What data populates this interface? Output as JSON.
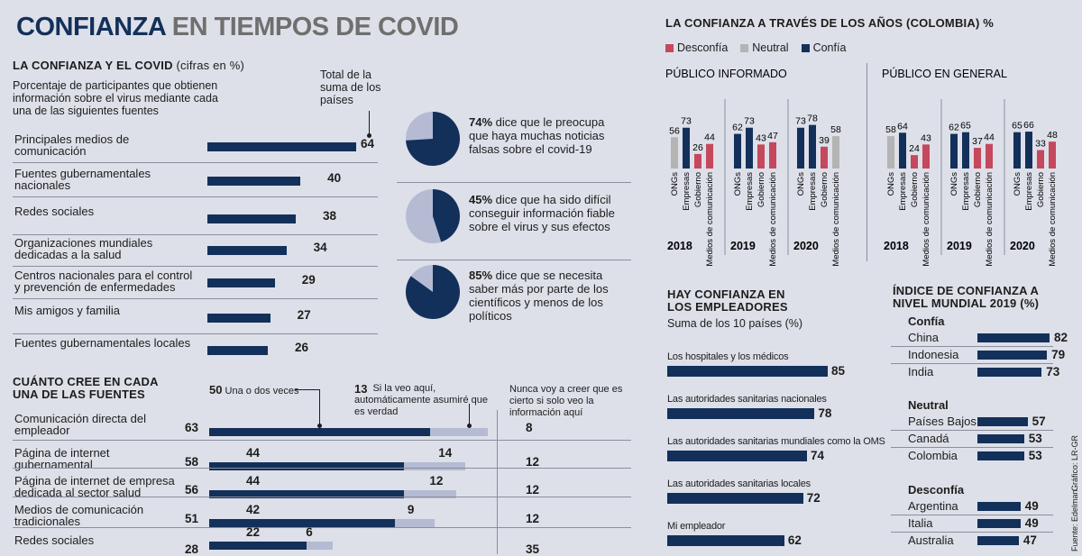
{
  "title": {
    "main": "CONFIANZA",
    "rest": "EN TIEMPOS DE COVID"
  },
  "covid": {
    "heading": "LA CONFIANZA Y EL COVID",
    "heading_note": "(cifras en %)",
    "description": "Porcentaje de participantes que obtienen información sobre el virus mediante cada una de las siguientes fuentes",
    "total_label": "Total de la suma de los países",
    "rows": [
      {
        "label": "Principales medios de comunicación",
        "value": 64
      },
      {
        "label": "Fuentes gubernamentales nacionales",
        "value": 40
      },
      {
        "label": "Redes sociales",
        "value": 38
      },
      {
        "label": "Organizaciones mundiales dedicadas a la salud",
        "value": 34
      },
      {
        "label": "Centros nacionales para el control y prevención de enfermedades",
        "value": 29
      },
      {
        "label": "Mis amigos y familia",
        "value": 27
      },
      {
        "label": "Fuentes gubernamentales locales",
        "value": 26
      }
    ]
  },
  "pies": [
    {
      "pct": "74%",
      "text": "dice que le preocupa que haya muchas noticias falsas sobre el covid-19",
      "value": 74
    },
    {
      "pct": "45%",
      "text": "dice que ha sido difícil conseguir información fiable sobre el virus y sus efectos",
      "value": 45
    },
    {
      "pct": "85%",
      "text": "dice que se necesita saber más por parte de los científicos y menos de los políticos",
      "value": 85
    }
  ],
  "belief": {
    "heading": "CUÁNTO CREE EN CADA UNA DE LAS FUENTES",
    "ann1_num": "50",
    "ann1_text": "Una o dos veces",
    "ann2_num": "13",
    "ann2_text": "Si la veo aquí, automáticamente asumiré que es verdad",
    "ann3_text": "Nunca voy a creer que es cierto si solo veo la información aquí",
    "rows": [
      {
        "label": "Comunicación directa del empleador",
        "total": 63,
        "once": 50,
        "auto": 13,
        "never": 8,
        "show_parts": false
      },
      {
        "label": "Página de internet gubernamental",
        "total": 58,
        "once": 44,
        "auto": 14,
        "never": 12,
        "show_parts": true
      },
      {
        "label": "Página de internet de empresa dedicada al sector salud",
        "total": 56,
        "once": 44,
        "auto": 12,
        "never": 12,
        "show_parts": true
      },
      {
        "label": "Medios de comunicación tradicionales",
        "total": 51,
        "once": 42,
        "auto": 9,
        "never": 12,
        "show_parts": true
      },
      {
        "label": "Redes sociales",
        "total": 28,
        "once": 22,
        "auto": 6,
        "never": 35,
        "show_parts": true
      }
    ]
  },
  "years": {
    "heading": "LA CONFIANZA A TRAVÉS DE LOS AÑOS (COLOMBIA) %",
    "legend": [
      {
        "label": "Desconfía",
        "color": "#c5485c"
      },
      {
        "label": "Neutral",
        "color": "#b4b4b4"
      },
      {
        "label": "Confía",
        "color": "#13305a"
      }
    ],
    "categories": [
      "ONGs",
      "Empresas",
      "Gobierno",
      "Medios de comunicación"
    ],
    "panels": [
      {
        "title": "PÚBLICO INFORMADO",
        "groups": [
          {
            "year": "2018",
            "values": [
              56,
              73,
              26,
              44
            ]
          },
          {
            "year": "2019",
            "values": [
              62,
              73,
              43,
              47
            ]
          },
          {
            "year": "2020",
            "values": [
              73,
              78,
              39,
              58
            ]
          }
        ]
      },
      {
        "title": "PÚBLICO EN GENERAL",
        "groups": [
          {
            "year": "2018",
            "values": [
              58,
              64,
              24,
              43
            ]
          },
          {
            "year": "2019",
            "values": [
              62,
              65,
              37,
              44
            ]
          },
          {
            "year": "2020",
            "values": [
              65,
              66,
              33,
              48
            ]
          }
        ]
      }
    ]
  },
  "employers": {
    "heading": "HAY CONFIANZA EN LOS EMPLEADORES",
    "sub": "Suma de los 10 países (%)",
    "rows": [
      {
        "label": "Los hospitales y los médicos",
        "value": 85
      },
      {
        "label": "Las autoridades sanitarias nacionales",
        "value": 78
      },
      {
        "label": "Las autoridades sanitarias mundiales como la OMS",
        "value": 74
      },
      {
        "label": "Las autoridades sanitarias locales",
        "value": 72
      },
      {
        "label": "Mi empleador",
        "value": 62
      }
    ]
  },
  "index": {
    "heading": "ÍNDICE DE CONFIANZA A NIVEL MUNDIAL 2019 (%)",
    "groups": [
      {
        "name": "Confía",
        "rows": [
          {
            "label": "China",
            "value": 82
          },
          {
            "label": "Indonesia",
            "value": 79
          },
          {
            "label": "India",
            "value": 73
          }
        ]
      },
      {
        "name": "Neutral",
        "rows": [
          {
            "label": "Países Bajos",
            "value": 57
          },
          {
            "label": "Canadá",
            "value": 53
          },
          {
            "label": "Colombia",
            "value": 53
          }
        ]
      },
      {
        "name": "Desconfía",
        "rows": [
          {
            "label": "Argentina",
            "value": 49
          },
          {
            "label": "Italia",
            "value": 49
          },
          {
            "label": "Australia",
            "value": 47
          }
        ]
      }
    ]
  },
  "credits": {
    "graphic": "Gráfico: LR-GR",
    "source": "Fuente: Edelman"
  },
  "colors": {
    "navy": "#13305a",
    "light": "#b4bbd2",
    "red": "#c5485c",
    "gray": "#b4b4b4"
  },
  "chart_data": [
    {
      "type": "bar",
      "title": "LA CONFIANZA Y EL COVID",
      "categories": [
        "Principales medios de comunicación",
        "Fuentes gubernamentales nacionales",
        "Redes sociales",
        "Organizaciones mundiales dedicadas a la salud",
        "Centros nacionales para el control y prevención de enfermedades",
        "Mis amigos y familia",
        "Fuentes gubernamentales locales"
      ],
      "values": [
        64,
        40,
        38,
        34,
        29,
        27,
        26
      ]
    },
    {
      "type": "pie",
      "values": [
        74,
        45,
        85
      ]
    },
    {
      "type": "bar",
      "title": "CUÁNTO CREE EN CADA UNA DE LAS FUENTES",
      "categories": [
        "Comunicación directa del empleador",
        "Página de internet gubernamental",
        "Página de internet de empresa dedicada al sector salud",
        "Medios de comunicación tradicionales",
        "Redes sociales"
      ],
      "series": [
        {
          "name": "Una o dos veces",
          "values": [
            50,
            44,
            44,
            42,
            22
          ]
        },
        {
          "name": "Si la veo aquí, automáticamente asumiré que es verdad",
          "values": [
            13,
            14,
            12,
            9,
            6
          ]
        },
        {
          "name": "Nunca voy a creer que es cierto si solo veo la información aquí",
          "values": [
            8,
            12,
            12,
            12,
            35
          ]
        }
      ]
    },
    {
      "type": "bar",
      "title": "LA CONFIANZA A TRAVÉS DE LOS AÑOS (COLOMBIA) %",
      "categories": [
        "ONGs",
        "Empresas",
        "Gobierno",
        "Medios de comunicación"
      ],
      "series": [
        {
          "name": "PÚBLICO INFORMADO 2018",
          "values": [
            56,
            73,
            26,
            44
          ]
        },
        {
          "name": "PÚBLICO INFORMADO 2019",
          "values": [
            62,
            73,
            43,
            47
          ]
        },
        {
          "name": "PÚBLICO INFORMADO 2020",
          "values": [
            73,
            78,
            39,
            58
          ]
        },
        {
          "name": "PÚBLICO EN GENERAL 2018",
          "values": [
            58,
            64,
            24,
            43
          ]
        },
        {
          "name": "PÚBLICO EN GENERAL 2019",
          "values": [
            62,
            65,
            37,
            44
          ]
        },
        {
          "name": "PÚBLICO EN GENERAL 2020",
          "values": [
            65,
            66,
            33,
            48
          ]
        }
      ]
    },
    {
      "type": "bar",
      "title": "HAY CONFIANZA EN LOS EMPLEADORES",
      "categories": [
        "Los hospitales y los médicos",
        "Las autoridades sanitarias nacionales",
        "Las autoridades sanitarias mundiales como la OMS",
        "Las autoridades sanitarias locales",
        "Mi empleador"
      ],
      "values": [
        85,
        78,
        74,
        72,
        62
      ]
    },
    {
      "type": "bar",
      "title": "ÍNDICE DE CONFIANZA A NIVEL MUNDIAL 2019 (%)",
      "categories": [
        "China",
        "Indonesia",
        "India",
        "Países Bajos",
        "Canadá",
        "Colombia",
        "Argentina",
        "Italia",
        "Australia"
      ],
      "values": [
        82,
        79,
        73,
        57,
        53,
        53,
        49,
        49,
        47
      ]
    }
  ]
}
